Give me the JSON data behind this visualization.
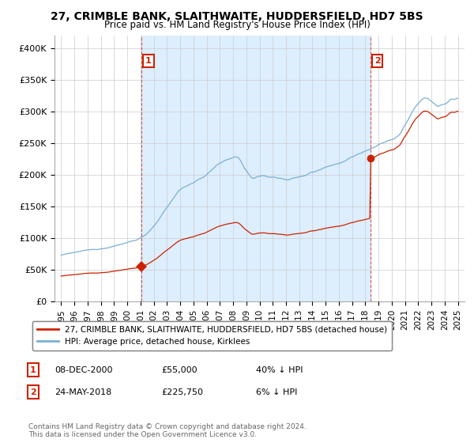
{
  "title": "27, CRIMBLE BANK, SLAITHWAITE, HUDDERSFIELD, HD7 5BS",
  "subtitle": "Price paid vs. HM Land Registry's House Price Index (HPI)",
  "sale1": {
    "date": 2001.1,
    "price": 55000,
    "label": "1",
    "pct": "40% ↓ HPI",
    "date_str": "08-DEC-2000",
    "price_str": "£55,000"
  },
  "sale2": {
    "date": 2018.4,
    "price": 225750,
    "label": "2",
    "pct": "6% ↓ HPI",
    "date_str": "24-MAY-2018",
    "price_str": "£225,750"
  },
  "hpi_color": "#7ab0d4",
  "price_color": "#cc2200",
  "ylim": [
    0,
    420000
  ],
  "xlim_start": 1994.5,
  "xlim_end": 2025.5,
  "shade_color": "#ddeeff",
  "legend_line1": "27, CRIMBLE BANK, SLAITHWAITE, HUDDERSFIELD, HD7 5BS (detached house)",
  "legend_line2": "HPI: Average price, detached house, Kirklees",
  "footnote": "Contains HM Land Registry data © Crown copyright and database right 2024.\nThis data is licensed under the Open Government Licence v3.0.",
  "yticks": [
    0,
    50000,
    100000,
    150000,
    200000,
    250000,
    300000,
    350000,
    400000
  ],
  "ytick_labels": [
    "£0",
    "£50K",
    "£100K",
    "£150K",
    "£200K",
    "£250K",
    "£300K",
    "£350K",
    "£400K"
  ]
}
